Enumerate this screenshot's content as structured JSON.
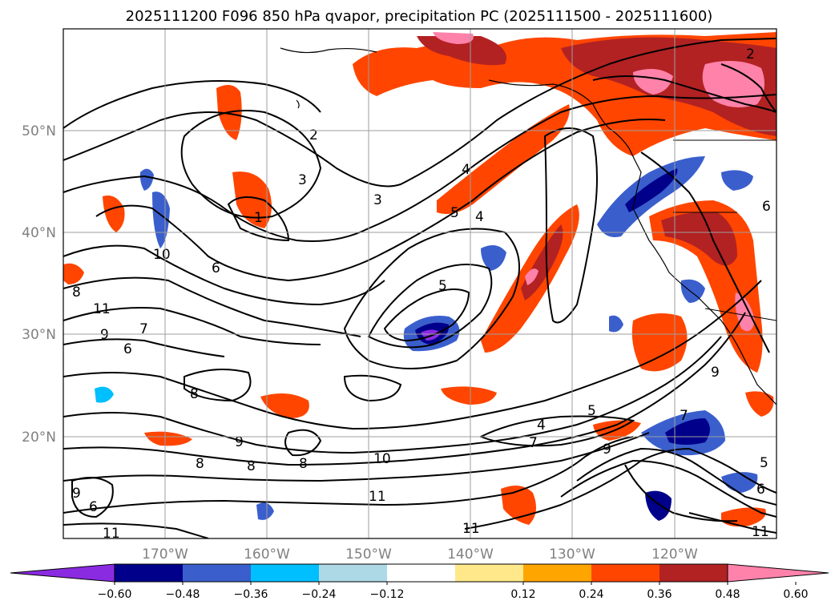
{
  "title": "2025111200 F096 850 hPa qvapor, precipitation PC (2025111500 - 2025111600)",
  "map": {
    "lon_ticks": [
      "170°W",
      "160°W",
      "150°W",
      "140°W",
      "130°W",
      "120°W"
    ],
    "lat_ticks": [
      "50°N",
      "40°N",
      "30°N",
      "20°N"
    ],
    "lon_range": [
      -180,
      -110
    ],
    "lat_range": [
      10,
      60
    ],
    "grid": true
  },
  "colorbar": {
    "ticks": [
      "−0.60",
      "−0.48",
      "−0.36",
      "−0.24",
      "−0.12",
      "0.12",
      "0.24",
      "0.36",
      "0.48",
      "0.60"
    ],
    "colors": [
      "#8a2be2",
      "#00008b",
      "#3a5fcd",
      "#00bfff",
      "#add8e6",
      "#ffffff",
      "#ffe88a",
      "#ffa500",
      "#ff4500",
      "#b22222",
      "#ff82ab"
    ],
    "extend": "both"
  },
  "contour_labels": [
    "2",
    "1",
    "3",
    "4",
    "5",
    "3",
    "4",
    "6",
    "10",
    "8",
    "11",
    "9",
    "6",
    "7",
    "8",
    "9",
    "8",
    "8",
    "10",
    "11",
    "11",
    "4",
    "5",
    "7",
    "9",
    "7",
    "5",
    "6",
    "11",
    "9",
    "8",
    "11",
    "9",
    "6",
    "5",
    "2",
    "6"
  ]
}
